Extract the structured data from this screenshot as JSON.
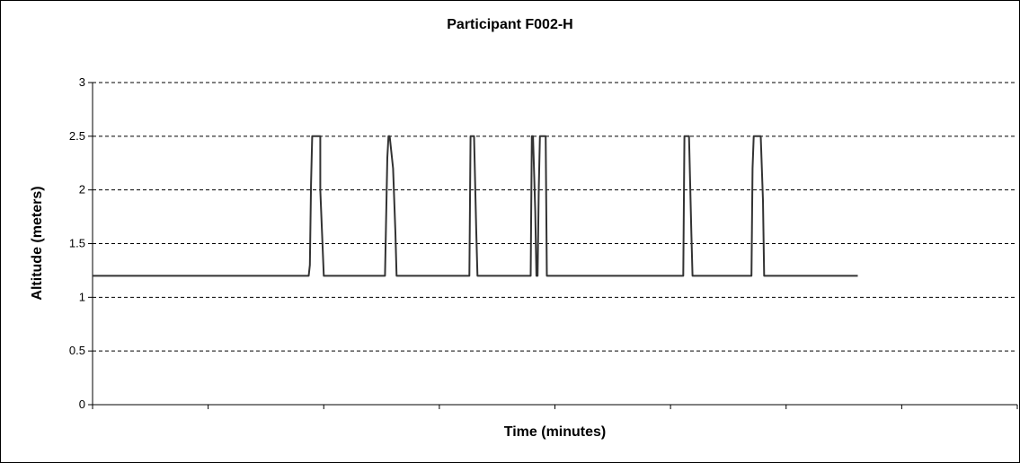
{
  "chart_data": {
    "type": "line",
    "title": "Participant F002-H",
    "xlabel": "Time (minutes)",
    "ylabel": "Altitude (meters)",
    "ylim": [
      0,
      3
    ],
    "yticks": [
      "0",
      "0.5",
      "1",
      "1.5",
      "2",
      "2.5",
      "3"
    ],
    "x_tick_count": 8,
    "xlim": [
      0,
      8
    ],
    "grid": "horizontal dashed",
    "legend": "none",
    "line_color": "#333333",
    "series": [
      {
        "x": [
          0.0,
          1.87,
          1.88,
          1.89,
          1.9,
          1.93,
          1.97,
          1.97,
          2.0,
          2.53,
          2.55,
          2.56,
          2.57,
          2.6,
          2.62,
          2.63,
          3.26,
          3.27,
          3.28,
          3.3,
          3.32,
          3.33,
          3.79,
          3.8,
          3.81,
          3.83,
          3.84,
          3.85,
          3.86,
          3.87,
          3.89,
          3.9,
          3.92,
          3.93,
          5.11,
          5.12,
          5.13,
          5.16,
          5.18,
          5.19,
          5.7,
          5.71,
          5.72,
          5.73,
          5.76,
          5.78,
          5.8,
          5.81,
          6.62
        ],
        "values": [
          1.2,
          1.2,
          1.3,
          2.05,
          2.5,
          2.5,
          2.5,
          2.0,
          1.2,
          1.2,
          2.3,
          2.5,
          2.5,
          2.2,
          1.6,
          1.2,
          1.2,
          2.5,
          2.5,
          2.5,
          1.6,
          1.2,
          1.2,
          2.5,
          2.5,
          1.8,
          1.2,
          1.2,
          2.0,
          2.5,
          2.5,
          2.5,
          2.5,
          1.2,
          1.2,
          2.5,
          2.5,
          2.5,
          1.6,
          1.2,
          1.2,
          2.2,
          2.5,
          2.5,
          2.5,
          2.5,
          1.9,
          1.2,
          1.2
        ]
      }
    ]
  }
}
